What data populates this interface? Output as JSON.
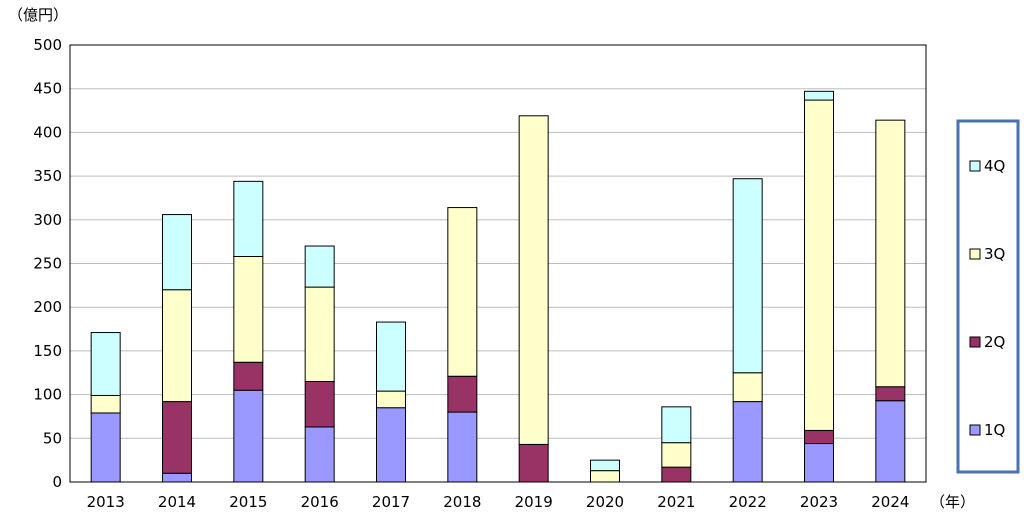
{
  "chart_data": {
    "type": "bar",
    "stacked": true,
    "y_unit_label": "（億円）",
    "x_unit_label": "（年）",
    "ylim": [
      0,
      500
    ],
    "y_ticks": [
      0,
      50,
      100,
      150,
      200,
      250,
      300,
      350,
      400,
      450,
      500
    ],
    "grid": true,
    "legend_position": "right",
    "categories": [
      "2013",
      "2014",
      "2015",
      "2016",
      "2017",
      "2018",
      "2019",
      "2020",
      "2021",
      "2022",
      "2023",
      "2024"
    ],
    "series": [
      {
        "name": "1Q",
        "color": "#9999ff",
        "values": [
          79,
          10,
          105,
          63,
          85,
          80,
          0,
          0,
          0,
          92,
          44,
          93
        ]
      },
      {
        "name": "2Q",
        "color": "#993366",
        "values": [
          0,
          82,
          32,
          52,
          0,
          41,
          43,
          0,
          17,
          0,
          15,
          16
        ]
      },
      {
        "name": "3Q",
        "color": "#ffffcc",
        "values": [
          20,
          128,
          121,
          108,
          19,
          193,
          376,
          13,
          28,
          33,
          378,
          305
        ]
      },
      {
        "name": "4Q",
        "color": "#ccffff",
        "values": [
          72,
          86,
          86,
          47,
          79,
          0,
          0,
          12,
          41,
          222,
          10,
          0
        ]
      }
    ]
  }
}
